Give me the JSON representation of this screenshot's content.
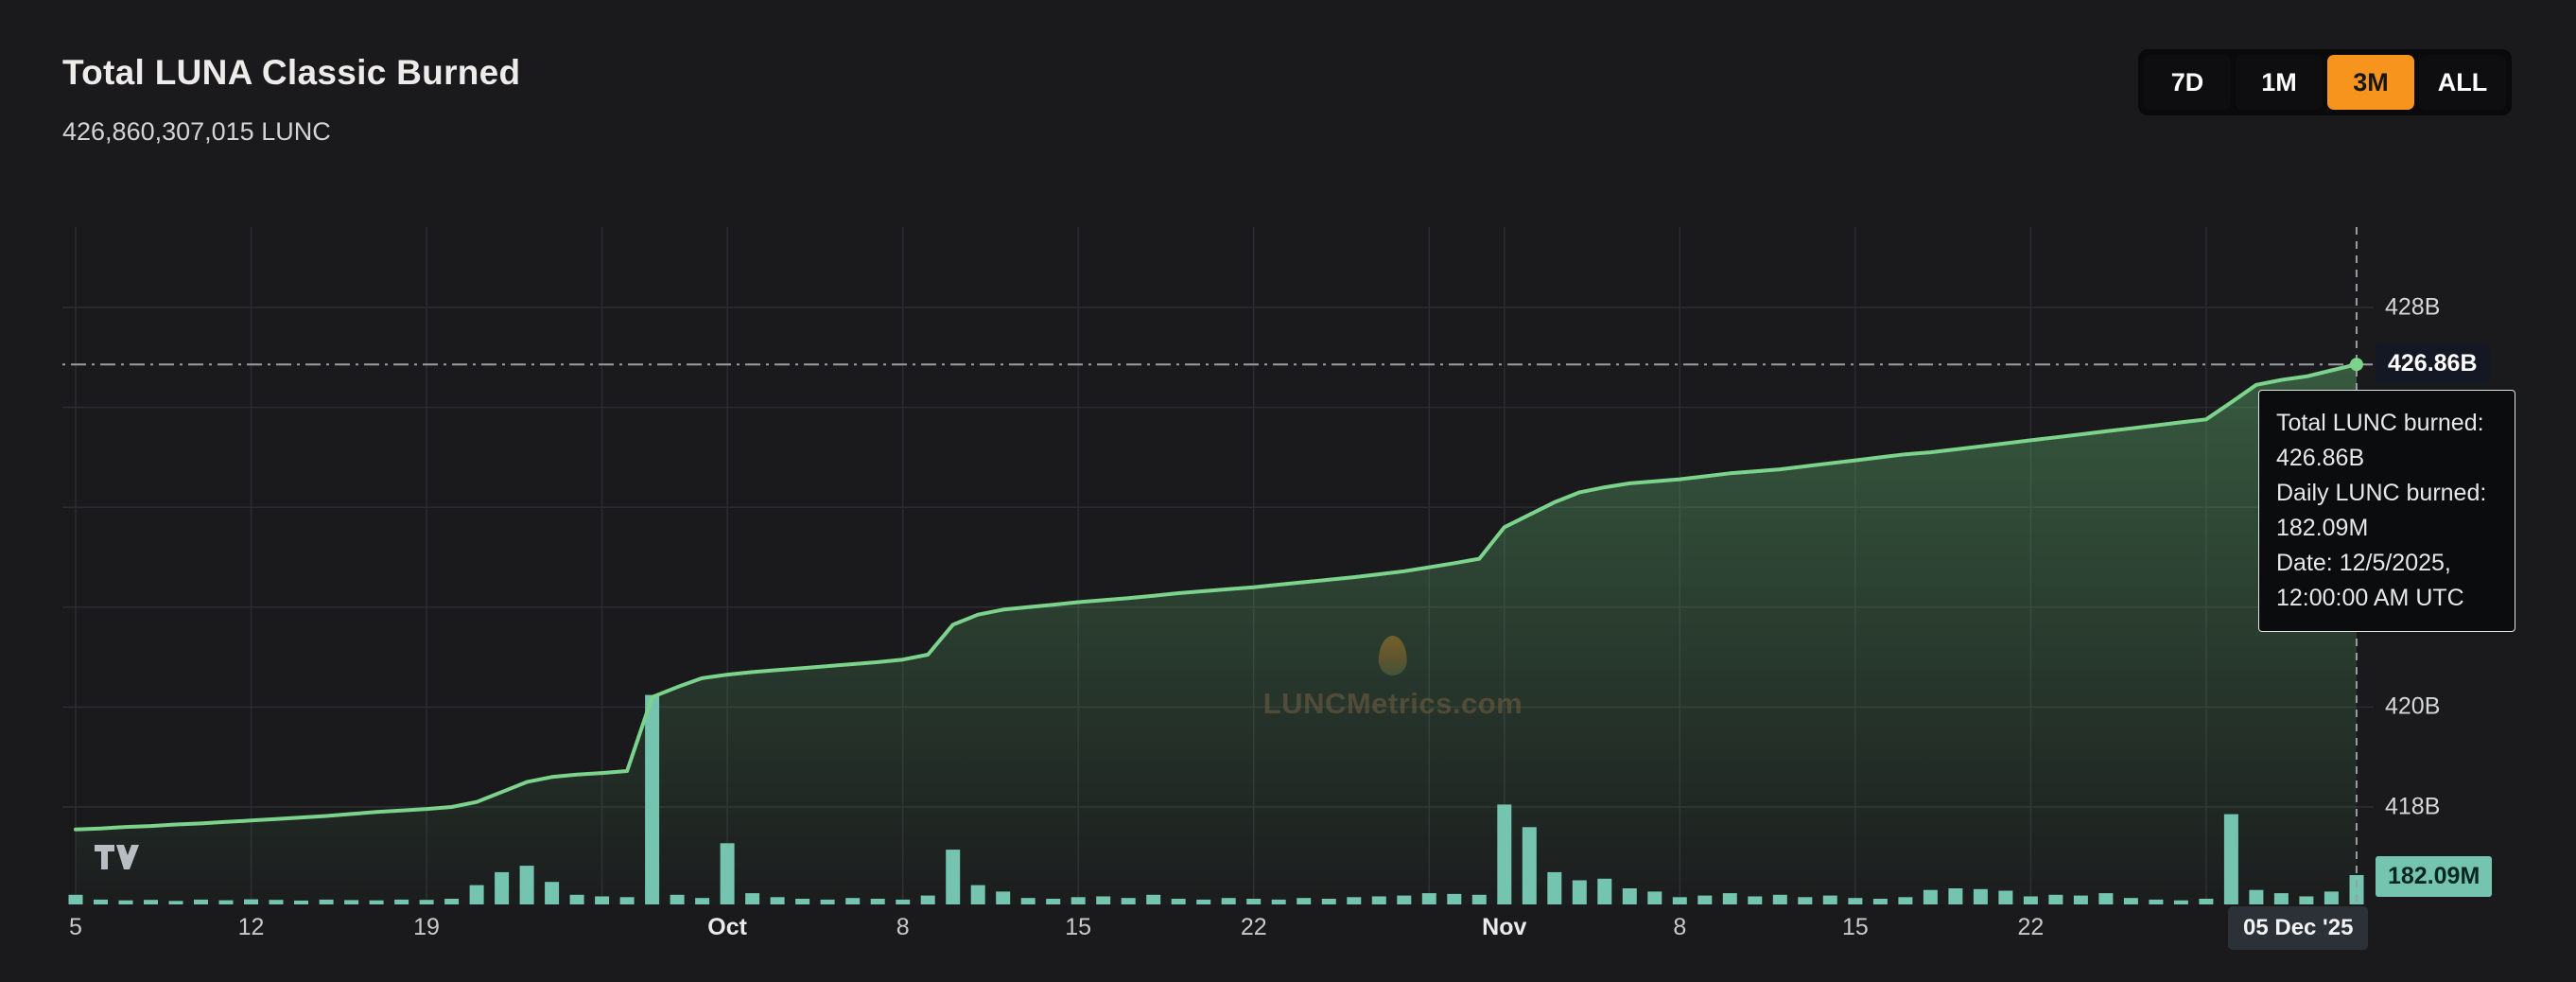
{
  "page": {
    "title": "Total LUNA Classic Burned",
    "subtitle": "426,860,307,015 LUNC"
  },
  "toolbar": {
    "ranges": [
      {
        "label": "7D",
        "active": false
      },
      {
        "label": "1M",
        "active": false
      },
      {
        "label": "3M",
        "active": true
      },
      {
        "label": "ALL",
        "active": false
      }
    ],
    "active_color": "#f7941d"
  },
  "tooltip": {
    "lines": [
      "Total LUNC burned:",
      "426.86B",
      "Daily LUNC burned:",
      "182.09M",
      "Date: 12/5/2025,",
      "12:00:00 AM UTC"
    ]
  },
  "watermark": {
    "icon": "flame-icon",
    "text": "LUNCMetrics.com"
  },
  "attribution": {
    "icon": "tradingview-logo-icon"
  },
  "axis_badges": {
    "current_total": "426.86B",
    "current_daily": "182.09M",
    "current_date": "05 Dec '25"
  },
  "chart_data": {
    "type": "area",
    "description": "Cumulative LUNC burned (green line with area fill, billions) plus daily LUNC burned (teal bars, millions), spanning 3 months ending 05 Dec '25",
    "grid_color": "#2c2c30",
    "crosshair_color": "#9a9da3",
    "x_tick_labels": [
      {
        "label": "5",
        "day": 0
      },
      {
        "label": "12",
        "day": 7
      },
      {
        "label": "19",
        "day": 14
      },
      {
        "label": "Oct",
        "day": 26,
        "bold": true
      },
      {
        "label": "8",
        "day": 33
      },
      {
        "label": "15",
        "day": 40
      },
      {
        "label": "22",
        "day": 47
      },
      {
        "label": "Nov",
        "day": 57,
        "bold": true
      },
      {
        "label": "8",
        "day": 64
      },
      {
        "label": "15",
        "day": 71
      },
      {
        "label": "22",
        "day": 78
      }
    ],
    "x_gridline_days": [
      0,
      7,
      14,
      21,
      26,
      33,
      40,
      47,
      54,
      57,
      64,
      71,
      78,
      85
    ],
    "x_last_day": 91,
    "x_last_label": "05 Dec '25",
    "y_axis": {
      "unit": "B",
      "gridlines": [
        418,
        420,
        422,
        424,
        426,
        428
      ],
      "ticks": [
        {
          "label": "428B",
          "value": 428
        },
        {
          "label": "420B",
          "value": 420
        },
        {
          "label": "418B",
          "value": 418
        }
      ],
      "current": {
        "label": "426.86B",
        "value": 426.86
      }
    },
    "series": [
      {
        "name": "Total LUNC burned",
        "type": "area",
        "unit": "B",
        "color": "#7bd38c",
        "fill_top": "rgba(96,178,112,0.42)",
        "fill_bottom": "rgba(96,178,112,0.02)",
        "current": {
          "label": "426.86B",
          "value": 426.86
        },
        "values": [
          417.55,
          417.57,
          417.6,
          417.62,
          417.65,
          417.67,
          417.7,
          417.73,
          417.76,
          417.79,
          417.82,
          417.86,
          417.9,
          417.93,
          417.96,
          418.0,
          418.1,
          418.3,
          418.5,
          418.6,
          418.65,
          418.68,
          418.72,
          420.2,
          420.4,
          420.58,
          420.65,
          420.7,
          420.74,
          420.78,
          420.82,
          420.86,
          420.9,
          420.95,
          421.05,
          421.65,
          421.85,
          421.95,
          422.0,
          422.05,
          422.1,
          422.14,
          422.18,
          422.23,
          422.28,
          422.32,
          422.36,
          422.4,
          422.45,
          422.5,
          422.55,
          422.6,
          422.66,
          422.72,
          422.8,
          422.88,
          422.97,
          423.6,
          423.85,
          424.1,
          424.3,
          424.4,
          424.48,
          424.52,
          424.56,
          424.62,
          424.68,
          424.72,
          424.76,
          424.82,
          424.88,
          424.94,
          425.0,
          425.06,
          425.1,
          425.16,
          425.22,
          425.28,
          425.34,
          425.4,
          425.46,
          425.52,
          425.58,
          425.64,
          425.7,
          425.76,
          426.1,
          426.45,
          426.55,
          426.62,
          426.74,
          426.86
        ]
      },
      {
        "name": "Daily LUNC burned",
        "type": "bar",
        "unit": "M",
        "color": "#74c4b0",
        "current": {
          "label": "182.09M",
          "value": 182.09
        },
        "values": [
          60,
          30,
          25,
          28,
          22,
          30,
          26,
          32,
          28,
          24,
          30,
          27,
          25,
          30,
          28,
          35,
          120,
          200,
          240,
          140,
          60,
          50,
          45,
          1300,
          60,
          40,
          380,
          70,
          45,
          35,
          30,
          40,
          35,
          30,
          55,
          340,
          120,
          80,
          40,
          35,
          45,
          50,
          40,
          60,
          35,
          30,
          40,
          35,
          30,
          40,
          35,
          45,
          50,
          55,
          70,
          65,
          60,
          620,
          480,
          200,
          150,
          160,
          100,
          80,
          45,
          55,
          70,
          50,
          60,
          45,
          55,
          40,
          35,
          45,
          90,
          100,
          95,
          85,
          50,
          60,
          55,
          70,
          40,
          30,
          25,
          35,
          560,
          90,
          70,
          50,
          80,
          182.09
        ]
      }
    ]
  }
}
